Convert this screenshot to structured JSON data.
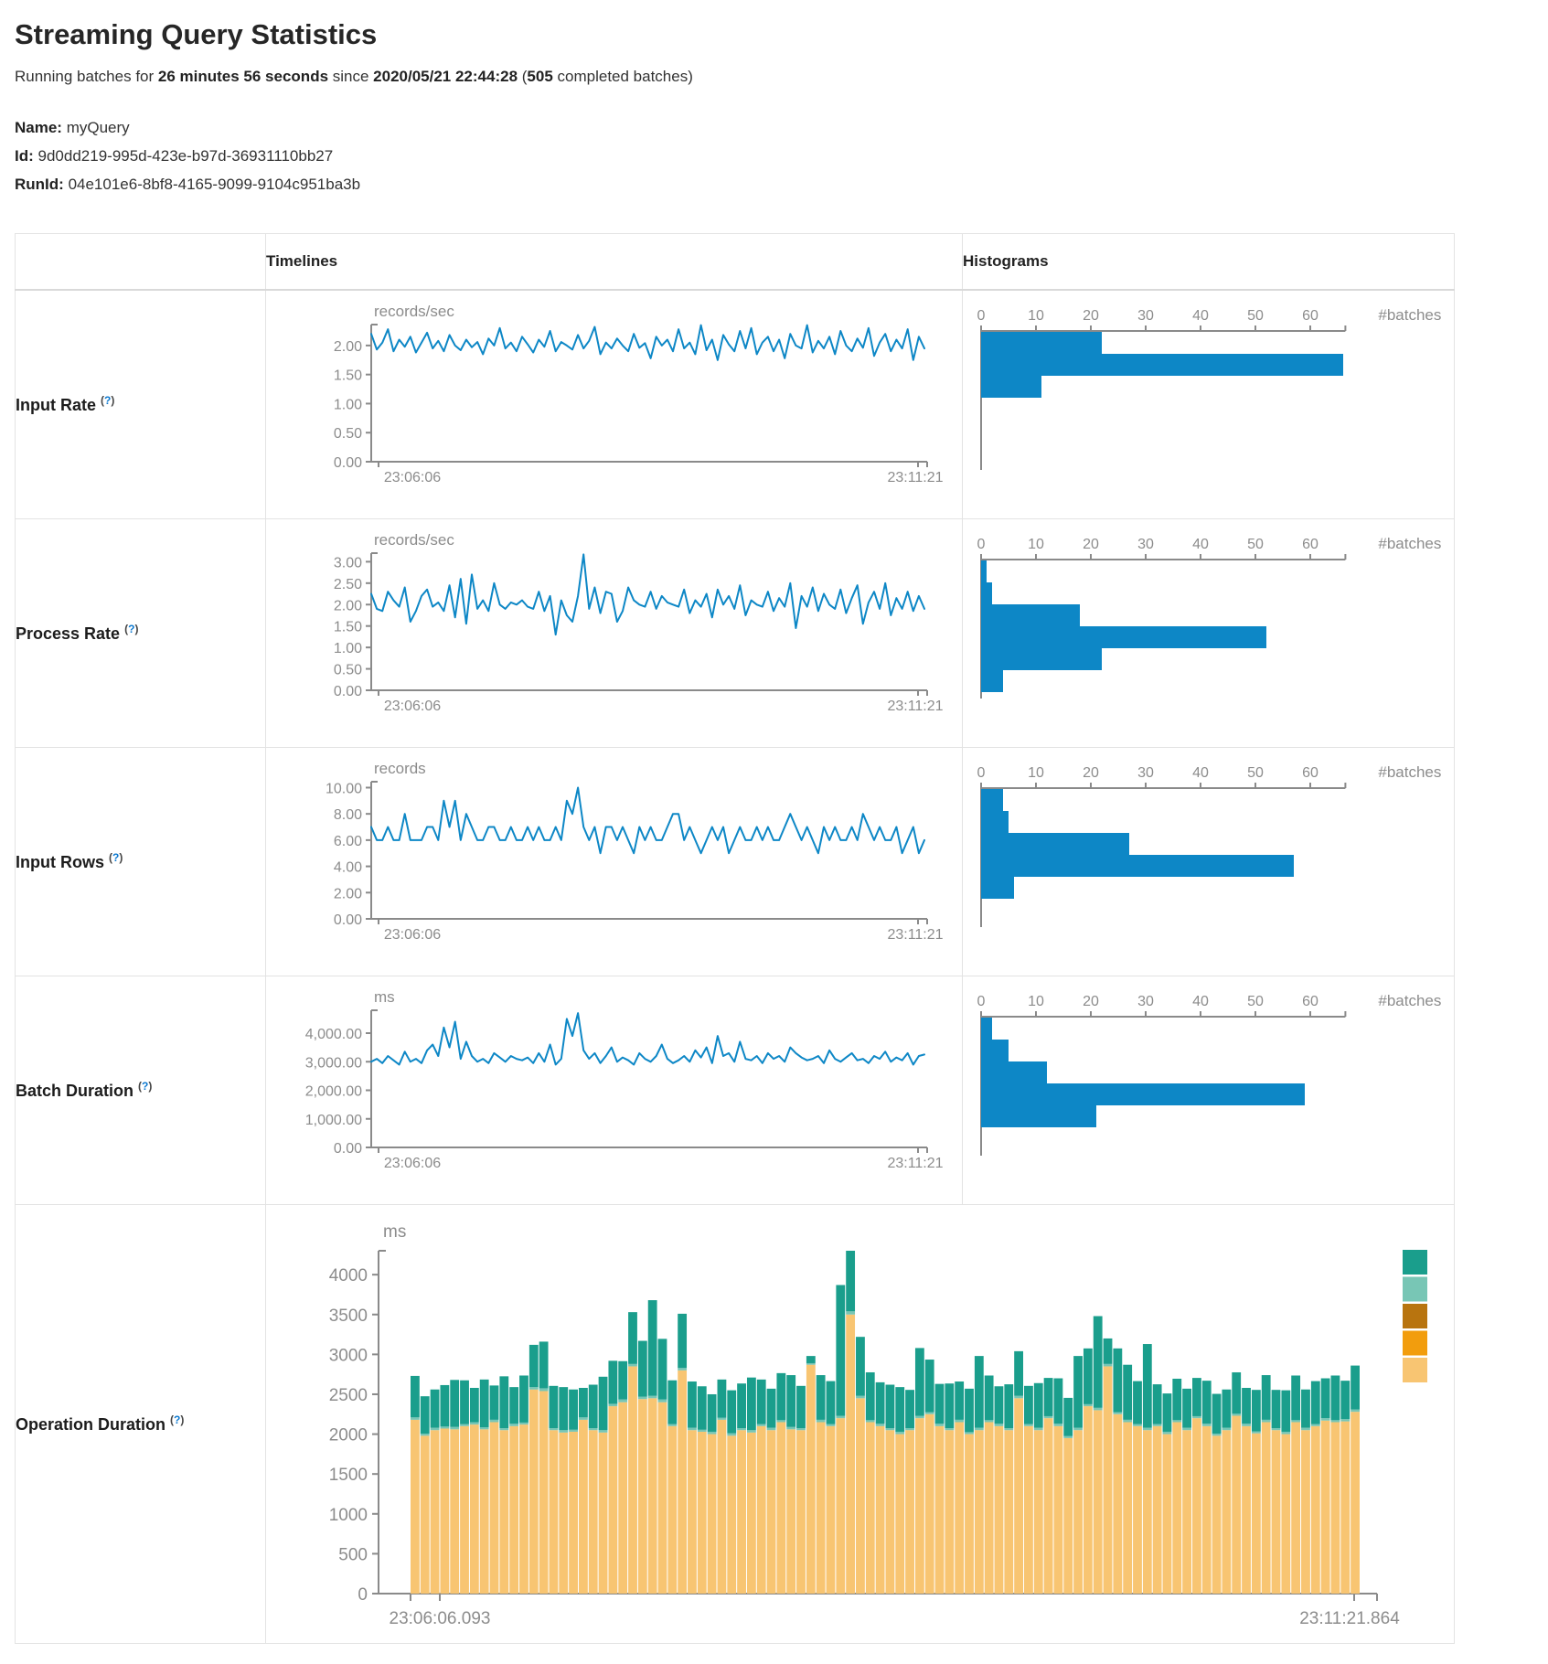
{
  "colors": {
    "blue": "#0d87c6",
    "axis": "#8a8a8a",
    "teal": "#1a9e8c",
    "teal_light": "#78c6b5",
    "brown": "#b8740f",
    "orange": "#f29d0d",
    "tan": "#f8c572"
  },
  "page": {
    "title": "Streaming Query Statistics",
    "subtitle": {
      "t1": "Running batches for ",
      "b1": "26 minutes 56 seconds",
      "t2": " since ",
      "b2": "2020/05/21 22:44:28",
      "t3": " (",
      "b3": "505",
      "t4": " completed batches)"
    },
    "meta": {
      "name_label": "Name:",
      "name_value": "myQuery",
      "id_label": "Id:",
      "id_value": "9d0dd219-995d-423e-b97d-36931110bb27",
      "runid_label": "RunId:",
      "runid_value": "04e101e6-8bf8-4165-9099-9104c951ba3b"
    }
  },
  "help": {
    "open": "(",
    "q": "?",
    "close": ")"
  },
  "table": {
    "headers": {
      "timelines": "Timelines",
      "histograms": "Histograms"
    },
    "rows": [
      {
        "label": "Input Rate"
      },
      {
        "label": "Process Rate"
      },
      {
        "label": "Input Rows"
      },
      {
        "label": "Batch Duration"
      },
      {
        "label": "Operation Duration"
      }
    ]
  },
  "chart_data": {
    "input_rate": {
      "timeline": {
        "type": "line",
        "unit": "records/sec",
        "x_start": "23:06:06",
        "x_end": "23:11:21",
        "ymax": 2.36,
        "yticks": [
          {
            "v": 2,
            "label": "2.00"
          },
          {
            "v": 1.5,
            "label": "1.50"
          },
          {
            "v": 1,
            "label": "1.00"
          },
          {
            "v": 0.5,
            "label": "0.50"
          },
          {
            "v": 0,
            "label": "0.00"
          }
        ],
        "values": [
          2.2,
          1.93,
          2.05,
          2.28,
          1.9,
          2.1,
          1.98,
          2.15,
          1.88,
          2.05,
          2.22,
          1.95,
          2.08,
          1.9,
          2.18,
          2.0,
          1.92,
          2.1,
          1.97,
          2.06,
          1.85,
          2.12,
          2.0,
          2.3,
          1.95,
          2.05,
          1.9,
          2.15,
          2.02,
          1.88,
          2.1,
          1.98,
          2.25,
          1.9,
          2.06,
          2.0,
          1.93,
          2.18,
          1.95,
          2.08,
          2.32,
          1.85,
          2.05,
          1.95,
          2.12,
          2.0,
          1.9,
          2.2,
          1.96,
          2.04,
          1.78,
          2.15,
          2.0,
          2.1,
          1.9,
          2.28,
          1.95,
          2.05,
          1.85,
          2.35,
          1.92,
          2.1,
          1.75,
          2.18,
          2.02,
          1.9,
          2.25,
          1.95,
          2.3,
          1.85,
          2.05,
          2.15,
          1.9,
          2.1,
          1.78,
          2.2,
          2.0,
          1.95,
          2.35,
          1.88,
          2.08,
          1.95,
          2.15,
          1.85,
          2.25,
          2.0,
          1.9,
          2.12,
          1.96,
          2.3,
          1.82,
          2.05,
          2.2,
          1.9,
          2.1,
          1.95,
          2.28,
          1.75,
          2.15,
          1.95
        ]
      },
      "histogram": {
        "type": "bar_h",
        "xlabel": "#batches",
        "xticks": [
          0,
          10,
          20,
          30,
          40,
          50,
          60
        ],
        "xmax": 66.4,
        "values": [
          22,
          66,
          11
        ]
      }
    },
    "process_rate": {
      "timeline": {
        "type": "line",
        "unit": "records/sec",
        "x_start": "23:06:06",
        "x_end": "23:11:21",
        "ymax": 3.2,
        "yticks": [
          {
            "v": 3,
            "label": "3.00"
          },
          {
            "v": 2.5,
            "label": "2.50"
          },
          {
            "v": 2,
            "label": "2.00"
          },
          {
            "v": 1.5,
            "label": "1.50"
          },
          {
            "v": 1,
            "label": "1.00"
          },
          {
            "v": 0.5,
            "label": "0.50"
          },
          {
            "v": 0,
            "label": "0.00"
          }
        ],
        "values": [
          2.25,
          1.9,
          1.85,
          2.3,
          2.1,
          1.95,
          2.4,
          1.6,
          1.85,
          2.2,
          2.35,
          1.95,
          2.05,
          1.85,
          2.45,
          1.7,
          2.6,
          1.55,
          2.7,
          1.9,
          2.1,
          1.85,
          2.5,
          2.0,
          1.9,
          2.05,
          2.0,
          2.1,
          1.95,
          1.9,
          2.3,
          1.85,
          2.2,
          1.3,
          2.1,
          1.75,
          1.6,
          2.2,
          3.17,
          1.9,
          2.4,
          1.8,
          2.3,
          2.25,
          1.6,
          1.85,
          2.4,
          2.1,
          2.0,
          1.95,
          2.3,
          1.9,
          2.2,
          2.05,
          2.0,
          1.95,
          2.35,
          1.8,
          2.1,
          1.95,
          2.25,
          1.7,
          2.35,
          2.0,
          2.2,
          1.9,
          2.45,
          1.75,
          2.1,
          2.0,
          1.95,
          2.3,
          1.85,
          2.15,
          1.95,
          2.5,
          1.45,
          2.2,
          1.95,
          2.4,
          1.85,
          2.25,
          2.0,
          1.9,
          2.35,
          1.8,
          2.15,
          2.45,
          1.55,
          2.05,
          2.3,
          1.9,
          2.5,
          1.75,
          2.15,
          1.9,
          2.3,
          1.85,
          2.2,
          1.9
        ]
      },
      "histogram": {
        "type": "bar_h",
        "xlabel": "#batches",
        "xticks": [
          0,
          10,
          20,
          30,
          40,
          50,
          60
        ],
        "xmax": 66.4,
        "values": [
          1,
          2,
          18,
          52,
          22,
          4
        ]
      }
    },
    "input_rows": {
      "timeline": {
        "type": "line",
        "unit": "records",
        "x_start": "23:06:06",
        "x_end": "23:11:21",
        "ymax": 10.45,
        "yticks": [
          {
            "v": 10,
            "label": "10.00"
          },
          {
            "v": 8,
            "label": "8.00"
          },
          {
            "v": 6,
            "label": "6.00"
          },
          {
            "v": 4,
            "label": "4.00"
          },
          {
            "v": 2,
            "label": "2.00"
          },
          {
            "v": 0,
            "label": "0.00"
          }
        ],
        "values": [
          7,
          6,
          6,
          7,
          6,
          6,
          8,
          6,
          6,
          6,
          7,
          7,
          6,
          9,
          7,
          9,
          6,
          8,
          7,
          6,
          6,
          7,
          7,
          6,
          6,
          7,
          6,
          6,
          7,
          6,
          7,
          6,
          6,
          7,
          6,
          9,
          8,
          10,
          7,
          6,
          7,
          5,
          7,
          7,
          6,
          7,
          6,
          5,
          7,
          6,
          7,
          6,
          6,
          7,
          8,
          8,
          6,
          7,
          6,
          5,
          6,
          7,
          6,
          7,
          5,
          6,
          7,
          6,
          6,
          7,
          6,
          7,
          6,
          6,
          7,
          8,
          7,
          6,
          7,
          6,
          5,
          7,
          6,
          7,
          6,
          6,
          7,
          6,
          8,
          7,
          6,
          7,
          6,
          6,
          7,
          5,
          6,
          7,
          5,
          6
        ]
      },
      "histogram": {
        "type": "bar_h",
        "xlabel": "#batches",
        "xticks": [
          0,
          10,
          20,
          30,
          40,
          50,
          60
        ],
        "xmax": 66.4,
        "values": [
          4,
          5,
          27,
          57,
          6
        ]
      }
    },
    "batch_duration": {
      "timeline": {
        "type": "line",
        "unit": "ms",
        "x_start": "23:06:06",
        "x_end": "23:11:21",
        "ymax": 4800,
        "yticks": [
          {
            "v": 4000,
            "label": "4,000.00"
          },
          {
            "v": 3000,
            "label": "3,000.00"
          },
          {
            "v": 2000,
            "label": "2,000.00"
          },
          {
            "v": 1000,
            "label": "1,000.00"
          },
          {
            "v": 0,
            "label": "0.00"
          }
        ],
        "values": [
          3000,
          3100,
          2950,
          3200,
          3050,
          2900,
          3350,
          3000,
          3100,
          2950,
          3400,
          3600,
          3200,
          4200,
          3500,
          4400,
          3100,
          3700,
          3200,
          3000,
          3100,
          2950,
          3300,
          3150,
          3000,
          3200,
          3100,
          3050,
          3150,
          2950,
          3300,
          3000,
          3600,
          2900,
          3100,
          4500,
          3900,
          4700,
          3400,
          3100,
          3300,
          2950,
          3200,
          3500,
          3000,
          3150,
          3050,
          2900,
          3300,
          3100,
          3000,
          3200,
          3600,
          3100,
          2950,
          3050,
          3200,
          3000,
          3400,
          3150,
          3500,
          2950,
          3900,
          3200,
          3300,
          3000,
          3700,
          3100,
          3050,
          3200,
          2950,
          3300,
          3100,
          3200,
          3000,
          3500,
          3300,
          3150,
          3050,
          3100,
          3200,
          2950,
          3400,
          3100,
          3000,
          3150,
          3300,
          3050,
          3100,
          2950,
          3200,
          3100,
          3350,
          3000,
          3150,
          3050,
          3300,
          2900,
          3200,
          3250
        ]
      },
      "histogram": {
        "type": "bar_h",
        "xlabel": "#batches",
        "xticks": [
          0,
          10,
          20,
          30,
          40,
          50,
          60
        ],
        "xmax": 66.4,
        "values": [
          2,
          5,
          12,
          59,
          21
        ]
      }
    },
    "operation_duration": {
      "type": "stacked_bar",
      "unit": "ms",
      "x_start": "23:06:06.093",
      "x_end": "23:11:21.864",
      "ymax": 4300,
      "yticks": [
        {
          "v": 4000,
          "label": "4000"
        },
        {
          "v": 3500,
          "label": "3500"
        },
        {
          "v": 3000,
          "label": "3000"
        },
        {
          "v": 2500,
          "label": "2500"
        },
        {
          "v": 2000,
          "label": "2000"
        },
        {
          "v": 1500,
          "label": "1500"
        },
        {
          "v": 1000,
          "label": "1000"
        },
        {
          "v": 500,
          "label": "500"
        },
        {
          "v": 0,
          "label": "0"
        }
      ],
      "series_colors": [
        "tan",
        "teal_light",
        "teal"
      ],
      "legend_colors": [
        "teal",
        "teal_light",
        "brown",
        "orange",
        "tan"
      ],
      "bars": [
        [
          2180,
          30,
          520
        ],
        [
          1980,
          25,
          470
        ],
        [
          2050,
          30,
          480
        ],
        [
          2070,
          25,
          520
        ],
        [
          2060,
          30,
          590
        ],
        [
          2100,
          25,
          550
        ],
        [
          2120,
          30,
          430
        ],
        [
          2060,
          25,
          600
        ],
        [
          2150,
          30,
          430
        ],
        [
          2050,
          25,
          650
        ],
        [
          2100,
          30,
          460
        ],
        [
          2120,
          25,
          590
        ],
        [
          2560,
          30,
          530
        ],
        [
          2540,
          35,
          585
        ],
        [
          2050,
          25,
          530
        ],
        [
          2020,
          30,
          540
        ],
        [
          2030,
          25,
          505
        ],
        [
          2180,
          30,
          370
        ],
        [
          2050,
          25,
          545
        ],
        [
          2020,
          30,
          670
        ],
        [
          2350,
          30,
          540
        ],
        [
          2400,
          35,
          480
        ],
        [
          2850,
          30,
          650
        ],
        [
          2440,
          30,
          700
        ],
        [
          2450,
          30,
          1200
        ],
        [
          2400,
          35,
          760
        ],
        [
          2100,
          25,
          550
        ],
        [
          2800,
          30,
          680
        ],
        [
          2050,
          30,
          580
        ],
        [
          2030,
          25,
          545
        ],
        [
          2000,
          30,
          470
        ],
        [
          2180,
          25,
          480
        ],
        [
          1980,
          30,
          540
        ],
        [
          2050,
          25,
          560
        ],
        [
          2020,
          30,
          660
        ],
        [
          2100,
          25,
          560
        ],
        [
          2050,
          30,
          490
        ],
        [
          2150,
          25,
          590
        ],
        [
          2060,
          30,
          650
        ],
        [
          2050,
          25,
          530
        ],
        [
          2870,
          20,
          90
        ],
        [
          2150,
          30,
          560
        ],
        [
          2100,
          25,
          540
        ],
        [
          2200,
          30,
          1640
        ],
        [
          3500,
          40,
          760
        ],
        [
          2450,
          30,
          740
        ],
        [
          2150,
          25,
          600
        ],
        [
          2100,
          30,
          520
        ],
        [
          2050,
          25,
          545
        ],
        [
          2000,
          30,
          560
        ],
        [
          2050,
          25,
          480
        ],
        [
          2200,
          30,
          850
        ],
        [
          2250,
          25,
          660
        ],
        [
          2100,
          30,
          500
        ],
        [
          2050,
          25,
          560
        ],
        [
          2150,
          30,
          480
        ],
        [
          2000,
          25,
          545
        ],
        [
          2050,
          30,
          900
        ],
        [
          2150,
          25,
          560
        ],
        [
          2100,
          30,
          470
        ],
        [
          2050,
          25,
          550
        ],
        [
          2450,
          30,
          560
        ],
        [
          2100,
          25,
          480
        ],
        [
          2050,
          30,
          560
        ],
        [
          2200,
          25,
          480
        ],
        [
          2100,
          30,
          570
        ],
        [
          1950,
          25,
          480
        ],
        [
          2050,
          30,
          900
        ],
        [
          2350,
          25,
          700
        ],
        [
          2300,
          30,
          1150
        ],
        [
          2850,
          30,
          320
        ],
        [
          2250,
          25,
          800
        ],
        [
          2150,
          30,
          690
        ],
        [
          2100,
          25,
          540
        ],
        [
          2050,
          30,
          1050
        ],
        [
          2100,
          25,
          500
        ],
        [
          2000,
          30,
          480
        ],
        [
          2150,
          25,
          520
        ],
        [
          2050,
          30,
          490
        ],
        [
          2200,
          25,
          480
        ],
        [
          2100,
          30,
          540
        ],
        [
          1980,
          25,
          500
        ],
        [
          2050,
          30,
          480
        ],
        [
          2230,
          25,
          520
        ],
        [
          2100,
          30,
          450
        ],
        [
          2010,
          25,
          520
        ],
        [
          2150,
          30,
          560
        ],
        [
          2050,
          25,
          480
        ],
        [
          2000,
          30,
          520
        ],
        [
          2150,
          25,
          560
        ],
        [
          2050,
          30,
          480
        ],
        [
          2100,
          25,
          540
        ],
        [
          2170,
          30,
          500
        ],
        [
          2150,
          25,
          560
        ],
        [
          2160,
          30,
          480
        ],
        [
          2280,
          30,
          550
        ]
      ]
    }
  }
}
